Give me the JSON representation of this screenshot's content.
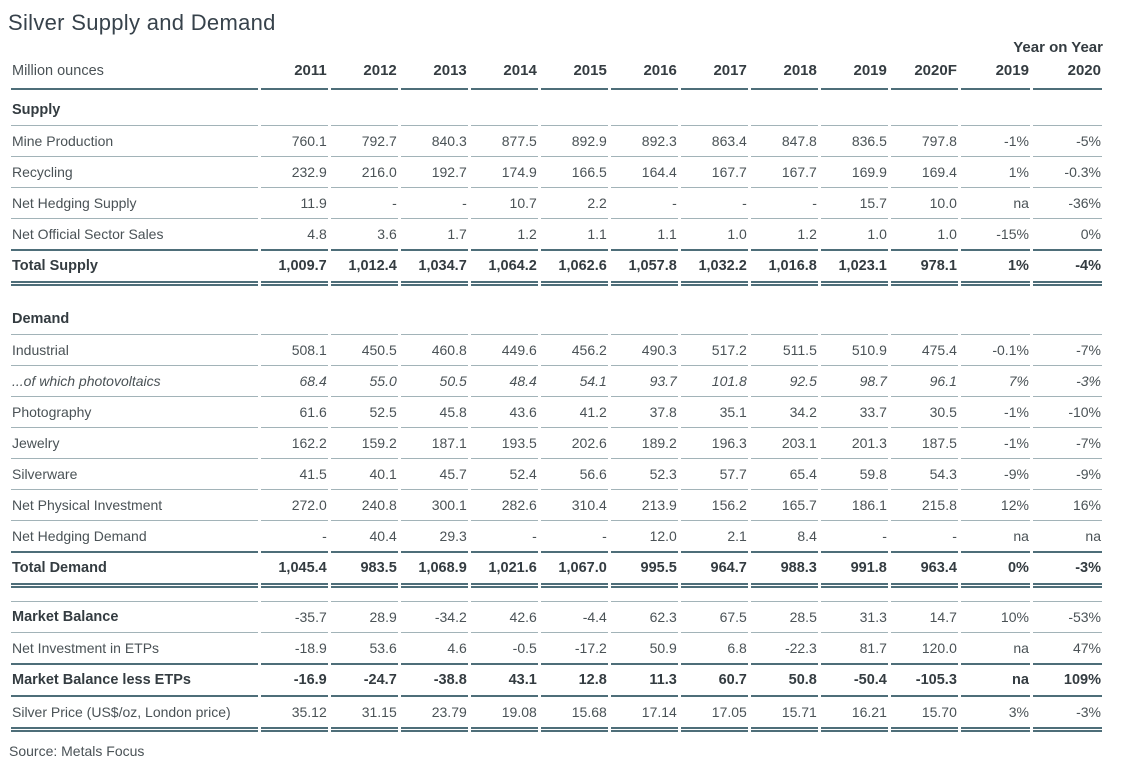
{
  "title": "Silver Supply and Demand",
  "year_on_year_label": "Year on Year",
  "source": "Source: Metals Focus",
  "table": {
    "unit_label": "Million ounces",
    "columns": [
      "2011",
      "2012",
      "2013",
      "2014",
      "2015",
      "2016",
      "2017",
      "2018",
      "2019",
      "2020F",
      "2019",
      "2020"
    ],
    "rows": [
      {
        "style": "section",
        "label": "Supply"
      },
      {
        "style": "data",
        "label": "Mine Production",
        "values": [
          "760.1",
          "792.7",
          "840.3",
          "877.5",
          "892.9",
          "892.3",
          "863.4",
          "847.8",
          "836.5",
          "797.8",
          "-1%",
          "-5%"
        ]
      },
      {
        "style": "data",
        "label": "Recycling",
        "values": [
          "232.9",
          "216.0",
          "192.7",
          "174.9",
          "166.5",
          "164.4",
          "167.7",
          "167.7",
          "169.9",
          "169.4",
          "1%",
          "-0.3%"
        ]
      },
      {
        "style": "data",
        "label": "Net Hedging Supply",
        "values": [
          "11.9",
          "-",
          "-",
          "10.7",
          "2.2",
          "-",
          "-",
          "-",
          "15.7",
          "10.0",
          "na",
          "-36%"
        ]
      },
      {
        "style": "data_nb",
        "label": "Net Official Sector Sales",
        "values": [
          "4.8",
          "3.6",
          "1.7",
          "1.2",
          "1.1",
          "1.1",
          "1.0",
          "1.2",
          "1.0",
          "1.0",
          "-15%",
          "0%"
        ]
      },
      {
        "style": "total",
        "label": "Total Supply",
        "values": [
          "1,009.7",
          "1,012.4",
          "1,034.7",
          "1,064.2",
          "1,062.6",
          "1,057.8",
          "1,032.2",
          "1,016.8",
          "1,023.1",
          "978.1",
          "1%",
          "-4%"
        ]
      },
      {
        "style": "spacer"
      },
      {
        "style": "section",
        "label": "Demand"
      },
      {
        "style": "data",
        "label": "Industrial",
        "values": [
          "508.1",
          "450.5",
          "460.8",
          "449.6",
          "456.2",
          "490.3",
          "517.2",
          "511.5",
          "510.9",
          "475.4",
          "-0.1%",
          "-7%"
        ]
      },
      {
        "style": "italic",
        "label": "...of which photovoltaics",
        "values": [
          "68.4",
          "55.0",
          "50.5",
          "48.4",
          "54.1",
          "93.7",
          "101.8",
          "92.5",
          "98.7",
          "96.1",
          "7%",
          "-3%"
        ]
      },
      {
        "style": "data",
        "label": "Photography",
        "values": [
          "61.6",
          "52.5",
          "45.8",
          "43.6",
          "41.2",
          "37.8",
          "35.1",
          "34.2",
          "33.7",
          "30.5",
          "-1%",
          "-10%"
        ]
      },
      {
        "style": "data",
        "label": "Jewelry",
        "values": [
          "162.2",
          "159.2",
          "187.1",
          "193.5",
          "202.6",
          "189.2",
          "196.3",
          "203.1",
          "201.3",
          "187.5",
          "-1%",
          "-7%"
        ]
      },
      {
        "style": "data",
        "label": "Silverware",
        "values": [
          "41.5",
          "40.1",
          "45.7",
          "52.4",
          "56.6",
          "52.3",
          "57.7",
          "65.4",
          "59.8",
          "54.3",
          "-9%",
          "-9%"
        ]
      },
      {
        "style": "data",
        "label": "Net Physical Investment",
        "values": [
          "272.0",
          "240.8",
          "300.1",
          "282.6",
          "310.4",
          "213.9",
          "156.2",
          "165.7",
          "186.1",
          "215.8",
          "12%",
          "16%"
        ]
      },
      {
        "style": "data_nb",
        "label": "Net Hedging Demand",
        "values": [
          "-",
          "40.4",
          "29.3",
          "-",
          "-",
          "12.0",
          "2.1",
          "8.4",
          "-",
          "-",
          "na",
          "na"
        ]
      },
      {
        "style": "total",
        "label": "Total Demand",
        "values": [
          "1,045.4",
          "983.5",
          "1,068.9",
          "1,021.6",
          "1,067.0",
          "995.5",
          "964.7",
          "988.3",
          "991.8",
          "963.4",
          "0%",
          "-3%"
        ]
      },
      {
        "style": "spacer"
      },
      {
        "style": "balance",
        "label": "Market Balance",
        "values": [
          "-35.7",
          "28.9",
          "-34.2",
          "42.6",
          "-4.4",
          "62.3",
          "67.5",
          "28.5",
          "31.3",
          "14.7",
          "10%",
          "-53%"
        ]
      },
      {
        "style": "data_nb",
        "label": "Net Investment in ETPs",
        "values": [
          "-18.9",
          "53.6",
          "4.6",
          "-0.5",
          "-17.2",
          "50.9",
          "6.8",
          "-22.3",
          "81.7",
          "120.0",
          "na",
          "47%"
        ]
      },
      {
        "style": "boldrow",
        "label": "Market Balance less ETPs",
        "values": [
          "-16.9",
          "-24.7",
          "-38.8",
          "43.1",
          "12.8",
          "11.3",
          "60.7",
          "50.8",
          "-50.4",
          "-105.3",
          "na",
          "109%"
        ]
      },
      {
        "style": "price",
        "label": "Silver Price (US$/oz, London price)",
        "values": [
          "35.12",
          "31.15",
          "23.79",
          "19.08",
          "15.68",
          "17.14",
          "17.05",
          "15.71",
          "16.21",
          "15.70",
          "3%",
          "-3%"
        ]
      }
    ]
  },
  "colors": {
    "thin_rule": "#a2b3b8",
    "thick_rule": "#4e6e79",
    "heading_text": "#343c41",
    "body_text": "#4a5256"
  }
}
